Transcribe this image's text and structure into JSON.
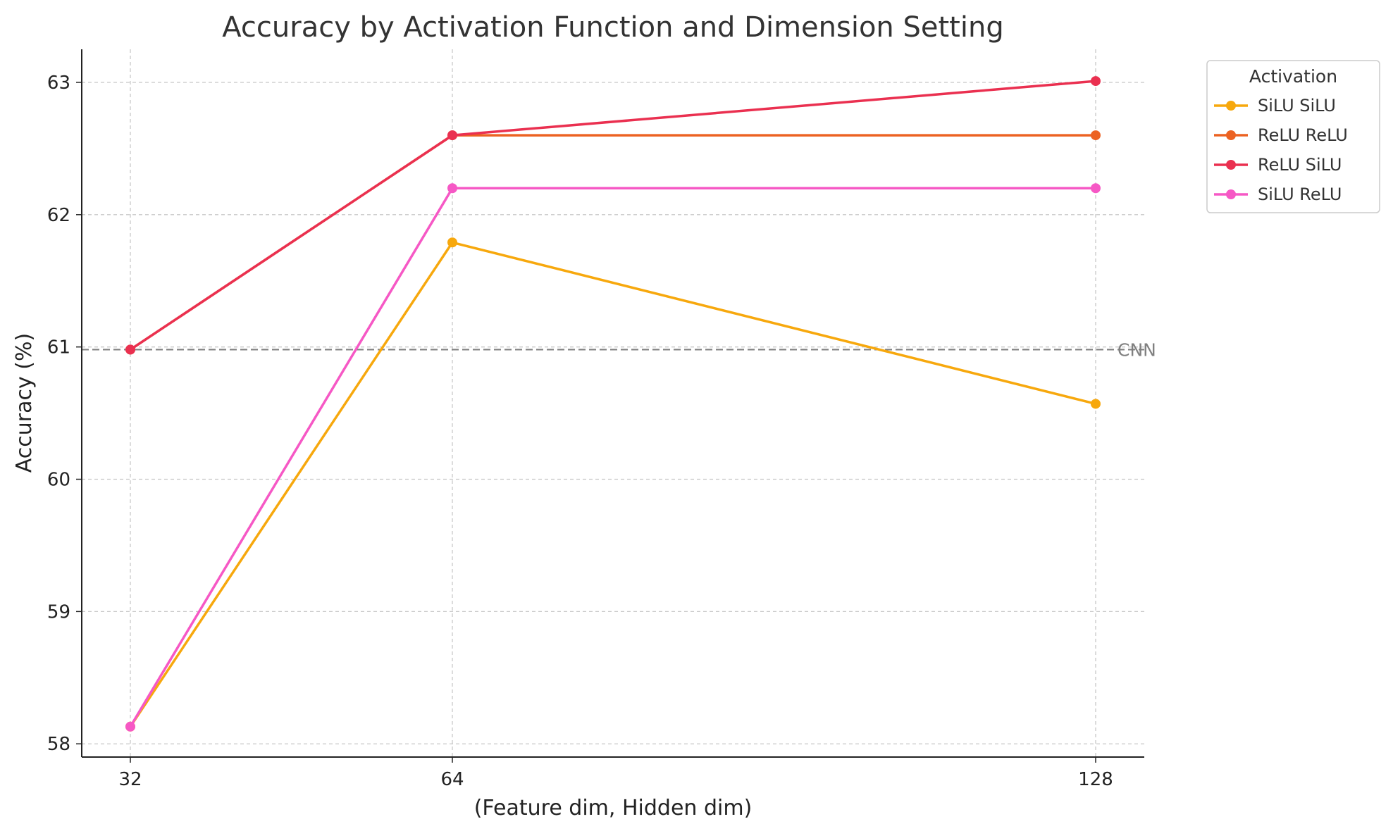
{
  "chart_data": {
    "type": "line",
    "title": "Accuracy by Activation Function and Dimension Setting",
    "xlabel": "(Feature dim, Hidden dim)",
    "ylabel": "Accuracy (%)",
    "x": [
      32,
      64,
      128
    ],
    "xticks": [
      "32",
      "64",
      "128"
    ],
    "yticks": [
      "58",
      "59",
      "60",
      "61",
      "62",
      "63"
    ],
    "ylim": [
      57.9,
      63.25
    ],
    "grid": true,
    "legend": {
      "title": "Activation",
      "placement": "outside-top-right"
    },
    "series": [
      {
        "name": "SiLU SiLU",
        "color": "#F7A80D",
        "values": [
          58.13,
          61.79,
          60.57
        ]
      },
      {
        "name": "ReLU ReLU",
        "color": "#EC6222",
        "values": [
          60.98,
          62.6,
          62.6
        ]
      },
      {
        "name": "ReLU SiLU",
        "color": "#EA3050",
        "values": [
          60.98,
          62.6,
          63.01
        ]
      },
      {
        "name": "SiLU ReLU",
        "color": "#F658C5",
        "values": [
          58.13,
          62.2,
          62.2
        ]
      }
    ],
    "reference_line": {
      "label": "CNN",
      "value": 60.98,
      "color": "#808080"
    }
  }
}
